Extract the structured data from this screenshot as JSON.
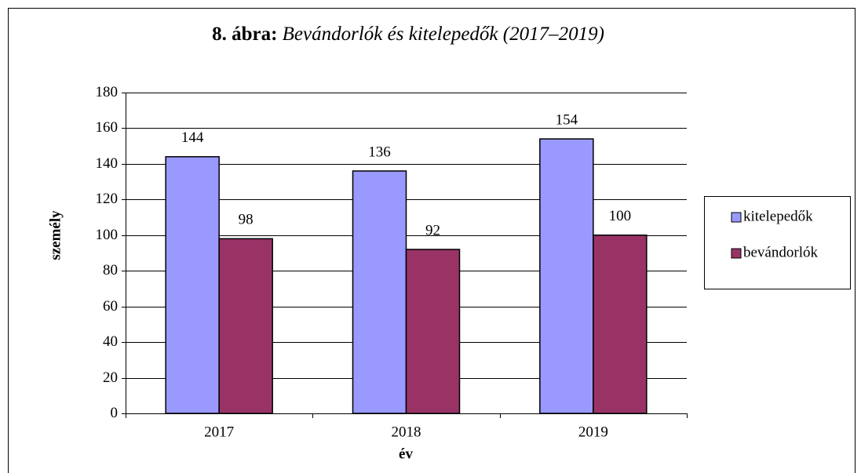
{
  "chart_data": {
    "type": "bar",
    "title_label": "8. ábra:",
    "title": "Bevándorlók és kitelepedők (2017–2019)",
    "x_label": "év",
    "y_label": "személy",
    "categories": [
      "2017",
      "2018",
      "2019"
    ],
    "series": [
      {
        "name": "kitelepedők",
        "color": "#9999ff",
        "values": [
          144,
          136,
          154
        ]
      },
      {
        "name": "bevándorlók",
        "color": "#993366",
        "values": [
          98,
          92,
          100
        ]
      }
    ],
    "ylim": [
      0,
      180
    ],
    "yticks": [
      0,
      20,
      40,
      60,
      80,
      100,
      120,
      140,
      160,
      180
    ],
    "grid": true,
    "legend": "right",
    "data_labels": true
  }
}
